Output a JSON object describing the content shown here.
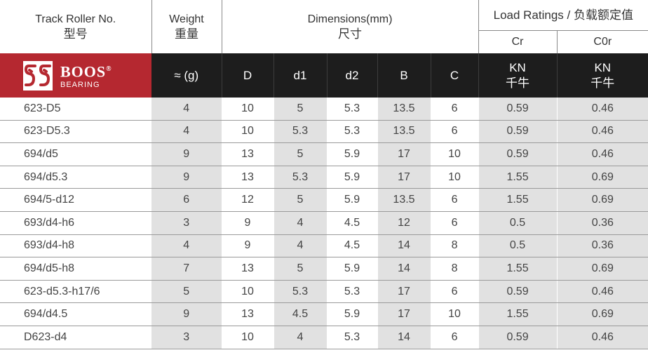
{
  "header": {
    "track_roller_no": "Track Roller No.",
    "model_cn": "型号",
    "weight": "Weight",
    "weight_cn": "重量",
    "dimensions": "Dimensions(mm)",
    "dimensions_cn": "尺寸",
    "load_ratings": "Load Ratings / 负载额定值",
    "cr": "Cr",
    "c0r": "C0r"
  },
  "brand": {
    "name": "BOOS",
    "registered": "®",
    "sub": "BEARING",
    "color": "#b52830"
  },
  "unit_row": {
    "weight_unit": "≈ (g)",
    "D": "D",
    "d1": "d1",
    "d2": "d2",
    "B": "B",
    "C": "C",
    "cr_unit": "KN",
    "cr_unit_cn": "千牛",
    "c0r_unit": "KN",
    "c0r_unit_cn": "千牛"
  },
  "rows": [
    {
      "no": "623-D5",
      "weight": "4",
      "D": "10",
      "d1": "5",
      "d2": "5.3",
      "B": "13.5",
      "C": "6",
      "cr": "0.59",
      "c0r": "0.46"
    },
    {
      "no": "623-D5.3",
      "weight": "4",
      "D": "10",
      "d1": "5.3",
      "d2": "5.3",
      "B": "13.5",
      "C": "6",
      "cr": "0.59",
      "c0r": "0.46"
    },
    {
      "no": "694/d5",
      "weight": "9",
      "D": "13",
      "d1": "5",
      "d2": "5.9",
      "B": "17",
      "C": "10",
      "cr": "0.59",
      "c0r": "0.46"
    },
    {
      "no": "694/d5.3",
      "weight": "9",
      "D": "13",
      "d1": "5.3",
      "d2": "5.9",
      "B": "17",
      "C": "10",
      "cr": "1.55",
      "c0r": "0.69"
    },
    {
      "no": "694/5-d12",
      "weight": "6",
      "D": "12",
      "d1": "5",
      "d2": "5.9",
      "B": "13.5",
      "C": "6",
      "cr": "1.55",
      "c0r": "0.69"
    },
    {
      "no": "693/d4-h6",
      "weight": "3",
      "D": "9",
      "d1": "4",
      "d2": "4.5",
      "B": "12",
      "C": "6",
      "cr": "0.5",
      "c0r": "0.36"
    },
    {
      "no": "693/d4-h8",
      "weight": "4",
      "D": "9",
      "d1": "4",
      "d2": "4.5",
      "B": "14",
      "C": "8",
      "cr": "0.5",
      "c0r": "0.36"
    },
    {
      "no": "694/d5-h8",
      "weight": "7",
      "D": "13",
      "d1": "5",
      "d2": "5.9",
      "B": "14",
      "C": "8",
      "cr": "1.55",
      "c0r": "0.69"
    },
    {
      "no": "623-d5.3-h17/6",
      "weight": "5",
      "D": "10",
      "d1": "5.3",
      "d2": "5.3",
      "B": "17",
      "C": "6",
      "cr": "0.59",
      "c0r": "0.46"
    },
    {
      "no": "694/d4.5",
      "weight": "9",
      "D": "13",
      "d1": "4.5",
      "d2": "5.9",
      "B": "17",
      "C": "10",
      "cr": "1.55",
      "c0r": "0.69"
    },
    {
      "no": "D623-d4",
      "weight": "3",
      "D": "10",
      "d1": "4",
      "d2": "5.3",
      "B": "14",
      "C": "6",
      "cr": "0.59",
      "c0r": "0.46"
    }
  ]
}
